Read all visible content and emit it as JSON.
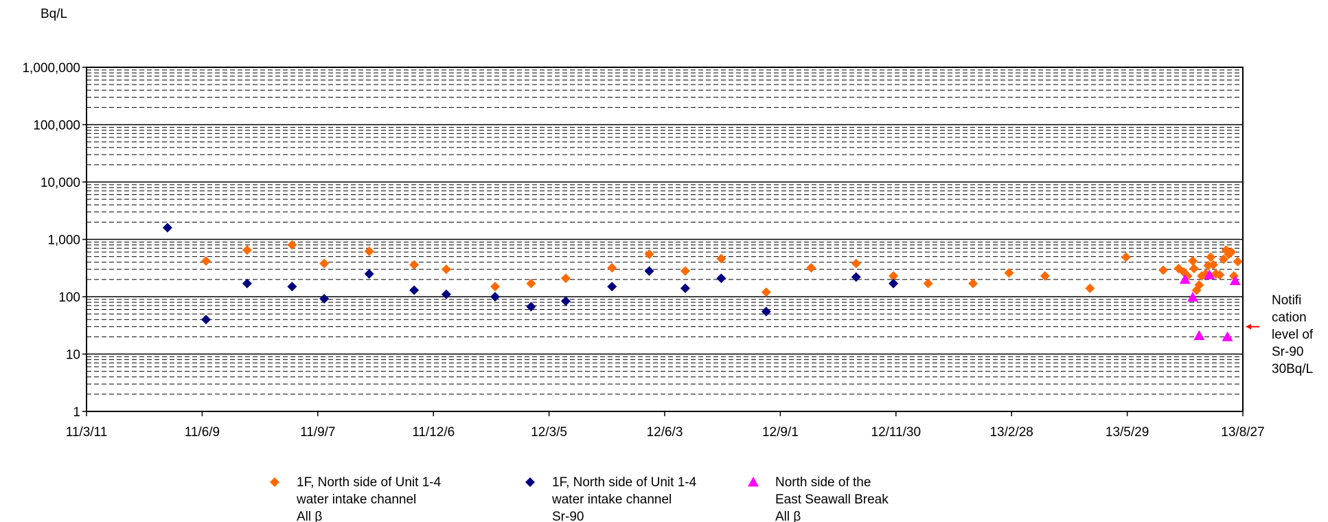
{
  "chart_data": {
    "type": "scatter",
    "y_unit": "Bq/L",
    "yscale": "log",
    "ylim": [
      1,
      1000000
    ],
    "y_ticks": [
      {
        "value": 1,
        "label": "1"
      },
      {
        "value": 10,
        "label": "10"
      },
      {
        "value": 100,
        "label": "100"
      },
      {
        "value": 1000,
        "label": "1,000"
      },
      {
        "value": 10000,
        "label": "10,000"
      },
      {
        "value": 100000,
        "label": "100,000"
      },
      {
        "value": 1000000,
        "label": "1,000,000"
      }
    ],
    "xlim": [
      "2011-03-11",
      "2013-08-27"
    ],
    "x_ticks": [
      {
        "value": "2011-03-11",
        "label": "11/3/11"
      },
      {
        "value": "2011-06-09",
        "label": "11/6/9"
      },
      {
        "value": "2011-09-07",
        "label": "11/9/7"
      },
      {
        "value": "2011-12-06",
        "label": "11/12/6"
      },
      {
        "value": "2012-03-05",
        "label": "12/3/5"
      },
      {
        "value": "2012-06-03",
        "label": "12/6/3"
      },
      {
        "value": "2012-09-01",
        "label": "12/9/1"
      },
      {
        "value": "2012-11-30",
        "label": "12/11/30"
      },
      {
        "value": "2013-02-28",
        "label": "13/2/28"
      },
      {
        "value": "2013-05-29",
        "label": "13/5/29"
      },
      {
        "value": "2013-08-27",
        "label": "13/8/27"
      }
    ],
    "grid": true,
    "legend_position": "bottom",
    "annotation": {
      "lines": [
        "Notifi",
        "cation",
        "level of",
        "Sr-90",
        "30Bq/L"
      ],
      "value": 30,
      "color": "#ff0000"
    },
    "series": [
      {
        "name_lines": [
          "1F, North side of Unit 1-4",
          "water intake channel",
          "All β"
        ],
        "marker": "diamond",
        "color": "#ff6a00",
        "points": [
          {
            "x": "2011-06-12",
            "y": 420
          },
          {
            "x": "2011-07-14",
            "y": 650
          },
          {
            "x": "2011-08-18",
            "y": 800
          },
          {
            "x": "2011-09-12",
            "y": 380
          },
          {
            "x": "2011-10-17",
            "y": 620
          },
          {
            "x": "2011-11-21",
            "y": 360
          },
          {
            "x": "2011-12-16",
            "y": 300
          },
          {
            "x": "2012-01-23",
            "y": 150
          },
          {
            "x": "2012-02-20",
            "y": 170
          },
          {
            "x": "2012-03-18",
            "y": 210
          },
          {
            "x": "2012-04-23",
            "y": 320
          },
          {
            "x": "2012-05-22",
            "y": 550
          },
          {
            "x": "2012-06-19",
            "y": 280
          },
          {
            "x": "2012-07-17",
            "y": 460
          },
          {
            "x": "2012-08-21",
            "y": 120
          },
          {
            "x": "2012-09-25",
            "y": 320
          },
          {
            "x": "2012-10-30",
            "y": 380
          },
          {
            "x": "2012-11-28",
            "y": 230
          },
          {
            "x": "2012-12-25",
            "y": 170
          },
          {
            "x": "2013-01-29",
            "y": 170
          },
          {
            "x": "2013-02-26",
            "y": 260
          },
          {
            "x": "2013-03-26",
            "y": 230
          },
          {
            "x": "2013-04-30",
            "y": 140
          },
          {
            "x": "2013-05-28",
            "y": 490
          },
          {
            "x": "2013-06-26",
            "y": 290
          },
          {
            "x": "2013-07-08",
            "y": 310
          },
          {
            "x": "2013-07-12",
            "y": 270
          },
          {
            "x": "2013-07-15",
            "y": 230
          },
          {
            "x": "2013-07-19",
            "y": 420
          },
          {
            "x": "2013-07-20",
            "y": 310
          },
          {
            "x": "2013-07-22",
            "y": 130
          },
          {
            "x": "2013-07-24",
            "y": 160
          },
          {
            "x": "2013-07-26",
            "y": 230
          },
          {
            "x": "2013-07-29",
            "y": 250
          },
          {
            "x": "2013-07-31",
            "y": 350
          },
          {
            "x": "2013-08-02",
            "y": 490
          },
          {
            "x": "2013-08-04",
            "y": 360
          },
          {
            "x": "2013-08-06",
            "y": 250
          },
          {
            "x": "2013-08-09",
            "y": 240
          },
          {
            "x": "2013-08-12",
            "y": 450
          },
          {
            "x": "2013-08-14",
            "y": 650
          },
          {
            "x": "2013-08-16",
            "y": 550
          },
          {
            "x": "2013-08-18",
            "y": 600
          },
          {
            "x": "2013-08-20",
            "y": 230
          },
          {
            "x": "2013-08-23",
            "y": 410
          }
        ]
      },
      {
        "name_lines": [
          "1F, North side of Unit 1-4",
          "water intake channel",
          "Sr-90"
        ],
        "marker": "diamond",
        "color": "#000080",
        "points": [
          {
            "x": "2011-05-13",
            "y": 1600
          },
          {
            "x": "2011-06-12",
            "y": 40
          },
          {
            "x": "2011-07-14",
            "y": 170
          },
          {
            "x": "2011-08-18",
            "y": 150
          },
          {
            "x": "2011-09-12",
            "y": 92
          },
          {
            "x": "2011-10-17",
            "y": 250
          },
          {
            "x": "2011-11-21",
            "y": 130
          },
          {
            "x": "2011-12-16",
            "y": 110
          },
          {
            "x": "2012-01-23",
            "y": 100
          },
          {
            "x": "2012-02-20",
            "y": 67
          },
          {
            "x": "2012-03-18",
            "y": 84
          },
          {
            "x": "2012-04-23",
            "y": 150
          },
          {
            "x": "2012-05-22",
            "y": 280
          },
          {
            "x": "2012-06-19",
            "y": 140
          },
          {
            "x": "2012-07-17",
            "y": 210
          },
          {
            "x": "2012-08-21",
            "y": 55
          },
          {
            "x": "2012-10-30",
            "y": 220
          },
          {
            "x": "2012-11-28",
            "y": 170
          }
        ]
      },
      {
        "name_lines": [
          "North side of the",
          "East Seawall Break",
          "All β"
        ],
        "marker": "triangle",
        "color": "#ff00ff",
        "points": [
          {
            "x": "2013-07-13",
            "y": 200
          },
          {
            "x": "2013-07-19",
            "y": 98
          },
          {
            "x": "2013-07-24",
            "y": 21
          },
          {
            "x": "2013-08-01",
            "y": 240
          },
          {
            "x": "2013-08-15",
            "y": 20
          },
          {
            "x": "2013-08-21",
            "y": 190
          }
        ]
      }
    ]
  }
}
